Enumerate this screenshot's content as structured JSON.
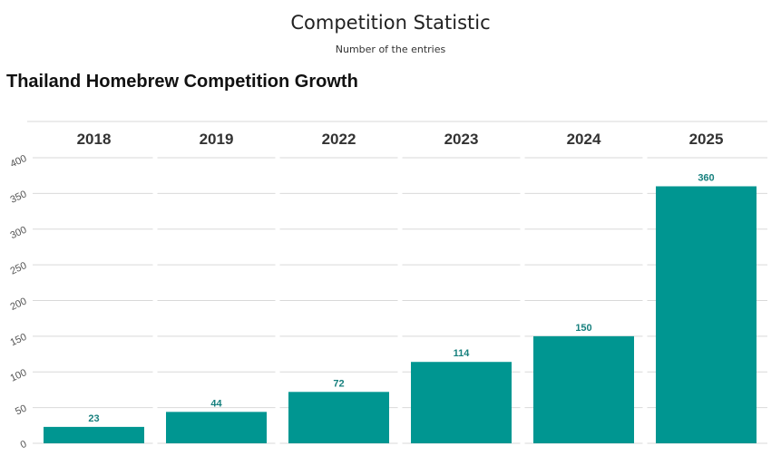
{
  "header": {
    "title": "Competition Statistic",
    "subtitle": "Number of the entries",
    "chart_heading": "Thailand Homebrew Competition Growth"
  },
  "colors": {
    "bar": "#009691",
    "value_label": "#17807e",
    "gridline": "#d9d9d9"
  },
  "chart_data": {
    "type": "bar",
    "title": "Thailand Homebrew Competition Growth",
    "categories": [
      "2018",
      "2019",
      "2022",
      "2023",
      "2024",
      "2025"
    ],
    "values": [
      23,
      44,
      72,
      114,
      150,
      360
    ],
    "xlabel": "",
    "ylabel": "",
    "ylim": [
      0,
      400
    ],
    "yticks": [
      0,
      50,
      100,
      150,
      200,
      250,
      300,
      350,
      400
    ],
    "category_labels_position": "top",
    "data_labels": true,
    "grid": true,
    "legend": "none"
  }
}
